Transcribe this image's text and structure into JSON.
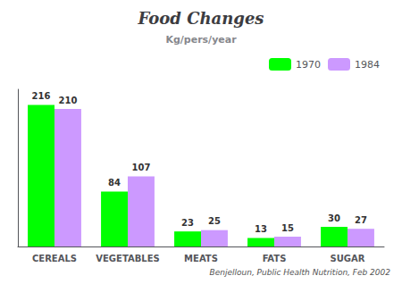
{
  "chart_data": {
    "type": "bar",
    "title": "Food Changes",
    "subtitle": "Kg/pers/year",
    "categories": [
      "CEREALS",
      "VEGETABLES",
      "MEATS",
      "FATS",
      "SUGAR"
    ],
    "series": [
      {
        "name": "1970",
        "color": "#00FF00",
        "values": [
          216,
          84,
          23,
          13,
          30
        ]
      },
      {
        "name": "1984",
        "color": "#CC99FF",
        "values": [
          210,
          107,
          25,
          15,
          27
        ]
      }
    ],
    "ylim": [
      0,
      240
    ],
    "yticks": [],
    "tick_labels": "x",
    "grid": false,
    "legend": "right",
    "data_labels": true,
    "annotations": [
      "Benjelloun, Public Health Nutrition, Feb 2002"
    ]
  }
}
